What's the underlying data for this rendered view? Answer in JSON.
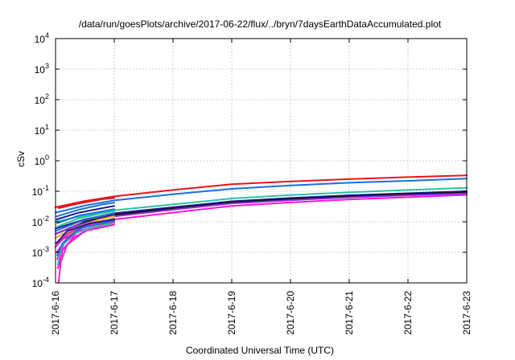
{
  "chart_data": {
    "type": "line",
    "title": "/data/run/goesPlots/archive/2017-06-22/flux/../bryn/7daysEarthDataAccumulated.plot",
    "xlabel": "Coordinated Universal Time (UTC)",
    "ylabel": "cSv",
    "y_scale": "log",
    "ylim": [
      0.0001,
      10000
    ],
    "xlim": [
      0,
      7
    ],
    "grid": true,
    "x_ticks": [
      "2017-6-16",
      "2017-6-17",
      "2017-6-18",
      "2017-6-19",
      "2017-6-20",
      "2017-6-21",
      "2017-6-22",
      "2017-6-23"
    ],
    "y_ticks": [
      {
        "base": "10",
        "exp": "-4"
      },
      {
        "base": "10",
        "exp": "-3"
      },
      {
        "base": "10",
        "exp": "-2"
      },
      {
        "base": "10",
        "exp": "-1"
      },
      {
        "base": "10",
        "exp": "0"
      },
      {
        "base": "10",
        "exp": "1"
      },
      {
        "base": "10",
        "exp": "2"
      },
      {
        "base": "10",
        "exp": "3"
      },
      {
        "base": "10",
        "exp": "4"
      }
    ],
    "series": [
      {
        "color": "#e8141c",
        "points": [
          [
            0,
            0.03
          ],
          [
            0.25,
            0.038
          ],
          [
            0.5,
            0.048
          ],
          [
            0.75,
            0.057
          ],
          [
            1,
            0.068
          ],
          [
            2,
            0.11
          ],
          [
            3,
            0.17
          ],
          [
            4,
            0.21
          ],
          [
            5,
            0.25
          ],
          [
            6,
            0.29
          ],
          [
            7,
            0.33
          ]
        ]
      },
      {
        "color": "#1a6fd8",
        "points": [
          [
            0,
            0.02
          ],
          [
            0.5,
            0.034
          ],
          [
            1,
            0.05
          ],
          [
            2,
            0.08
          ],
          [
            3,
            0.12
          ],
          [
            4,
            0.155
          ],
          [
            5,
            0.19
          ],
          [
            6,
            0.22
          ],
          [
            7,
            0.26
          ]
        ]
      },
      {
        "color": "#2ec2a0",
        "points": [
          [
            0,
            0.01
          ],
          [
            0.5,
            0.016
          ],
          [
            1,
            0.024
          ],
          [
            2,
            0.037
          ],
          [
            3,
            0.058
          ],
          [
            4,
            0.075
          ],
          [
            5,
            0.092
          ],
          [
            6,
            0.11
          ],
          [
            7,
            0.13
          ]
        ]
      },
      {
        "color": "#1c1c8c",
        "points": [
          [
            0,
            0.006
          ],
          [
            0.5,
            0.012
          ],
          [
            1,
            0.019
          ],
          [
            2,
            0.03
          ],
          [
            3,
            0.047
          ],
          [
            4,
            0.06
          ],
          [
            5,
            0.074
          ],
          [
            6,
            0.086
          ],
          [
            7,
            0.1
          ]
        ]
      },
      {
        "color": "#111111",
        "points": [
          [
            0,
            0.004
          ],
          [
            0.5,
            0.01
          ],
          [
            1,
            0.017
          ],
          [
            2,
            0.027
          ],
          [
            3,
            0.043
          ],
          [
            4,
            0.055
          ],
          [
            5,
            0.068
          ],
          [
            6,
            0.08
          ],
          [
            7,
            0.092
          ]
        ]
      },
      {
        "color": "#8a2be2",
        "points": [
          [
            0,
            0.003
          ],
          [
            0.5,
            0.009
          ],
          [
            1,
            0.015
          ],
          [
            2,
            0.025
          ],
          [
            3,
            0.04
          ],
          [
            4,
            0.051
          ],
          [
            5,
            0.063
          ],
          [
            6,
            0.074
          ],
          [
            7,
            0.085
          ]
        ]
      },
      {
        "color": "#ff14d8",
        "points": [
          [
            0,
            0.002
          ],
          [
            0.5,
            0.007
          ],
          [
            1,
            0.012
          ],
          [
            2,
            0.02
          ],
          [
            3,
            0.033
          ],
          [
            4,
            0.043
          ],
          [
            5,
            0.054
          ],
          [
            6,
            0.064
          ],
          [
            7,
            0.076
          ]
        ]
      },
      {
        "color": "#e8141c",
        "points": [
          [
            0.05,
            0.028
          ],
          [
            0.4,
            0.04
          ],
          [
            0.8,
            0.055
          ],
          [
            1,
            0.06
          ]
        ]
      },
      {
        "color": "#1a6fd8",
        "points": [
          [
            0.02,
            0.015
          ],
          [
            0.4,
            0.025
          ],
          [
            0.8,
            0.037
          ],
          [
            1,
            0.042
          ]
        ]
      },
      {
        "color": "#1c1c8c",
        "points": [
          [
            0.02,
            0.012
          ],
          [
            0.4,
            0.02
          ],
          [
            0.8,
            0.028
          ],
          [
            1,
            0.033
          ]
        ]
      },
      {
        "color": "#1a6fd8",
        "points": [
          [
            0.03,
            0.009
          ],
          [
            0.4,
            0.016
          ],
          [
            0.8,
            0.022
          ],
          [
            1,
            0.026
          ]
        ]
      },
      {
        "color": "#2ec2a0",
        "points": [
          [
            0.03,
            0.007
          ],
          [
            0.4,
            0.013
          ],
          [
            0.8,
            0.019
          ],
          [
            1,
            0.022
          ]
        ]
      },
      {
        "color": "#1a6fd8",
        "points": [
          [
            0,
            0.005
          ],
          [
            0.4,
            0.01
          ],
          [
            0.8,
            0.016
          ],
          [
            1,
            0.019
          ]
        ]
      },
      {
        "color": "#8a2be2",
        "points": [
          [
            0,
            0.004
          ],
          [
            0.4,
            0.008
          ],
          [
            0.8,
            0.013
          ],
          [
            1,
            0.016
          ]
        ]
      },
      {
        "color": "#e8c020",
        "points": [
          [
            0,
            0.003
          ],
          [
            0.3,
            0.006
          ],
          [
            0.7,
            0.011
          ],
          [
            1,
            0.015
          ]
        ]
      },
      {
        "color": "#b8b820",
        "points": [
          [
            0.05,
            0.0025
          ],
          [
            0.4,
            0.006
          ],
          [
            0.8,
            0.01
          ],
          [
            1,
            0.013
          ]
        ]
      },
      {
        "color": "#d4c51a",
        "points": [
          [
            0.1,
            0.004
          ],
          [
            0.5,
            0.007
          ],
          [
            1,
            0.01
          ]
        ]
      },
      {
        "color": "#ff14d8",
        "points": [
          [
            0,
            0.0015
          ],
          [
            0.2,
            0.004
          ],
          [
            0.5,
            0.008
          ],
          [
            1,
            0.012
          ]
        ]
      },
      {
        "color": "#ff14d8",
        "points": [
          [
            0.02,
            0.001
          ],
          [
            0.2,
            0.003
          ],
          [
            0.5,
            0.007
          ],
          [
            1,
            0.011
          ]
        ]
      },
      {
        "color": "#ff14d8",
        "points": [
          [
            0.03,
            0.0006
          ],
          [
            0.15,
            0.002
          ],
          [
            0.4,
            0.005
          ],
          [
            1,
            0.01
          ]
        ]
      },
      {
        "color": "#ff14d8",
        "points": [
          [
            0.04,
            0.0003
          ],
          [
            0.12,
            0.0012
          ],
          [
            0.3,
            0.003
          ],
          [
            0.6,
            0.006
          ],
          [
            1,
            0.009
          ]
        ]
      },
      {
        "color": "#ff14d8",
        "points": [
          [
            0.05,
            0.0001
          ],
          [
            0.09,
            0.0005
          ],
          [
            0.2,
            0.0018
          ],
          [
            0.5,
            0.005
          ],
          [
            1,
            0.008
          ]
        ]
      },
      {
        "color": "#2ec2a0",
        "points": [
          [
            0.04,
            0.0004
          ],
          [
            0.1,
            0.0015
          ],
          [
            0.3,
            0.004
          ],
          [
            0.7,
            0.007
          ],
          [
            1,
            0.009
          ]
        ]
      },
      {
        "color": "#1a6fd8",
        "points": [
          [
            0.03,
            0.0008
          ],
          [
            0.12,
            0.002
          ],
          [
            0.4,
            0.006
          ],
          [
            1,
            0.011
          ]
        ]
      },
      {
        "color": "#1c1c8c",
        "points": [
          [
            0.02,
            0.002
          ],
          [
            0.2,
            0.005
          ],
          [
            0.6,
            0.009
          ],
          [
            1,
            0.012
          ]
        ]
      }
    ]
  }
}
